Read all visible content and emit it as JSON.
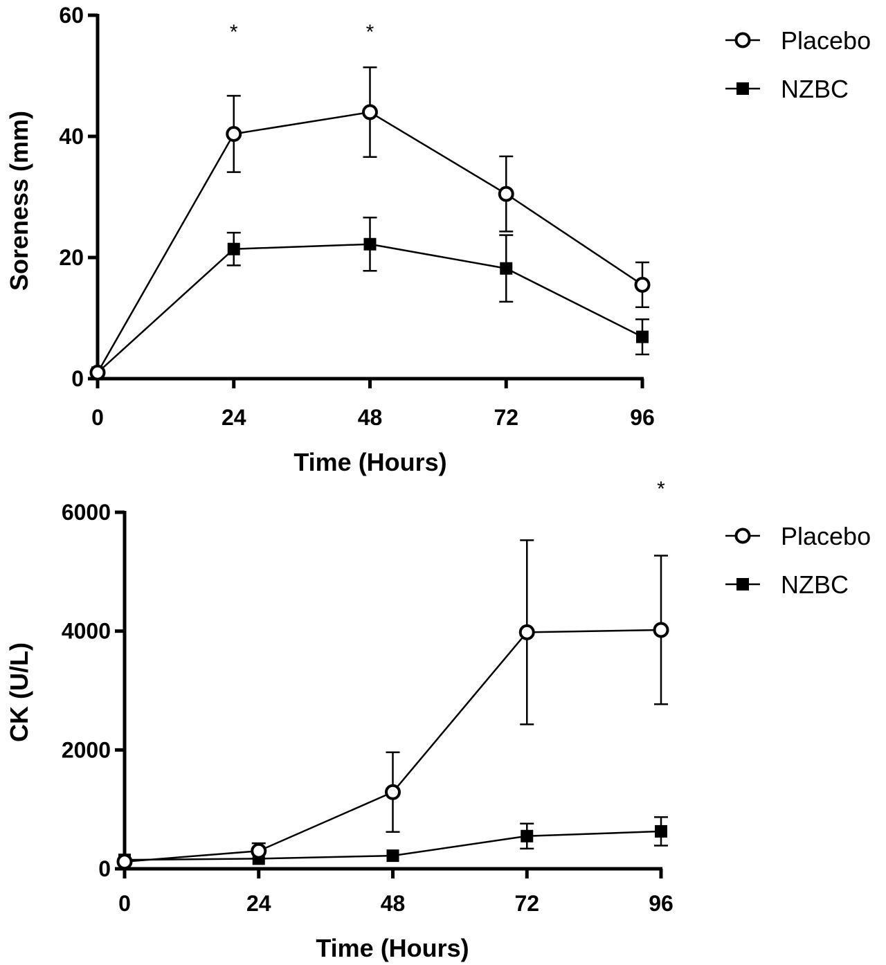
{
  "chart_data": [
    {
      "type": "line",
      "title": "",
      "xlabel": "Time (Hours)",
      "ylabel": "Soreness (mm)",
      "x": [
        0,
        24,
        48,
        72,
        96
      ],
      "xticks": [
        "0",
        "24",
        "48",
        "72",
        "96"
      ],
      "xlim": [
        0,
        96
      ],
      "ylim": [
        0,
        60
      ],
      "yticks": [
        "0",
        "20",
        "40",
        "60"
      ],
      "grid": false,
      "legend": "top-right",
      "series": [
        {
          "name": "Placebo",
          "marker": "open-circle",
          "values": [
            1,
            40.4,
            44,
            30.5,
            15.5
          ],
          "errors": [
            0,
            6.3,
            7.4,
            6.2,
            3.7
          ]
        },
        {
          "name": "NZBC",
          "marker": "filled-square",
          "values": [
            1,
            21.4,
            22.2,
            18.2,
            6.9
          ],
          "errors": [
            0,
            2.7,
            4.4,
            5.5,
            2.9
          ]
        }
      ],
      "annotations": [
        {
          "text": "*",
          "x": 24,
          "y": 57.5
        },
        {
          "text": "*",
          "x": 48,
          "y": 57.5
        }
      ]
    },
    {
      "type": "line",
      "title": "",
      "xlabel": "Time (Hours)",
      "ylabel": "CK (U/L)",
      "x": [
        0,
        24,
        48,
        72,
        96
      ],
      "xticks": [
        "0",
        "24",
        "48",
        "72",
        "96"
      ],
      "xlim": [
        0,
        96
      ],
      "ylim": [
        0,
        6000
      ],
      "yticks": [
        "0",
        "2000",
        "4000",
        "6000"
      ],
      "grid": false,
      "legend": "top-right",
      "series": [
        {
          "name": "Placebo",
          "marker": "open-circle",
          "values": [
            120,
            300,
            1290,
            3980,
            4020
          ],
          "errors": [
            0,
            130,
            670,
            1550,
            1250
          ]
        },
        {
          "name": "NZBC",
          "marker": "filled-square",
          "values": [
            150,
            170,
            220,
            550,
            630
          ],
          "errors": [
            0,
            0,
            0,
            210,
            240
          ]
        }
      ],
      "annotations": [
        {
          "text": "*",
          "x": 96,
          "y": 6400
        }
      ]
    }
  ]
}
